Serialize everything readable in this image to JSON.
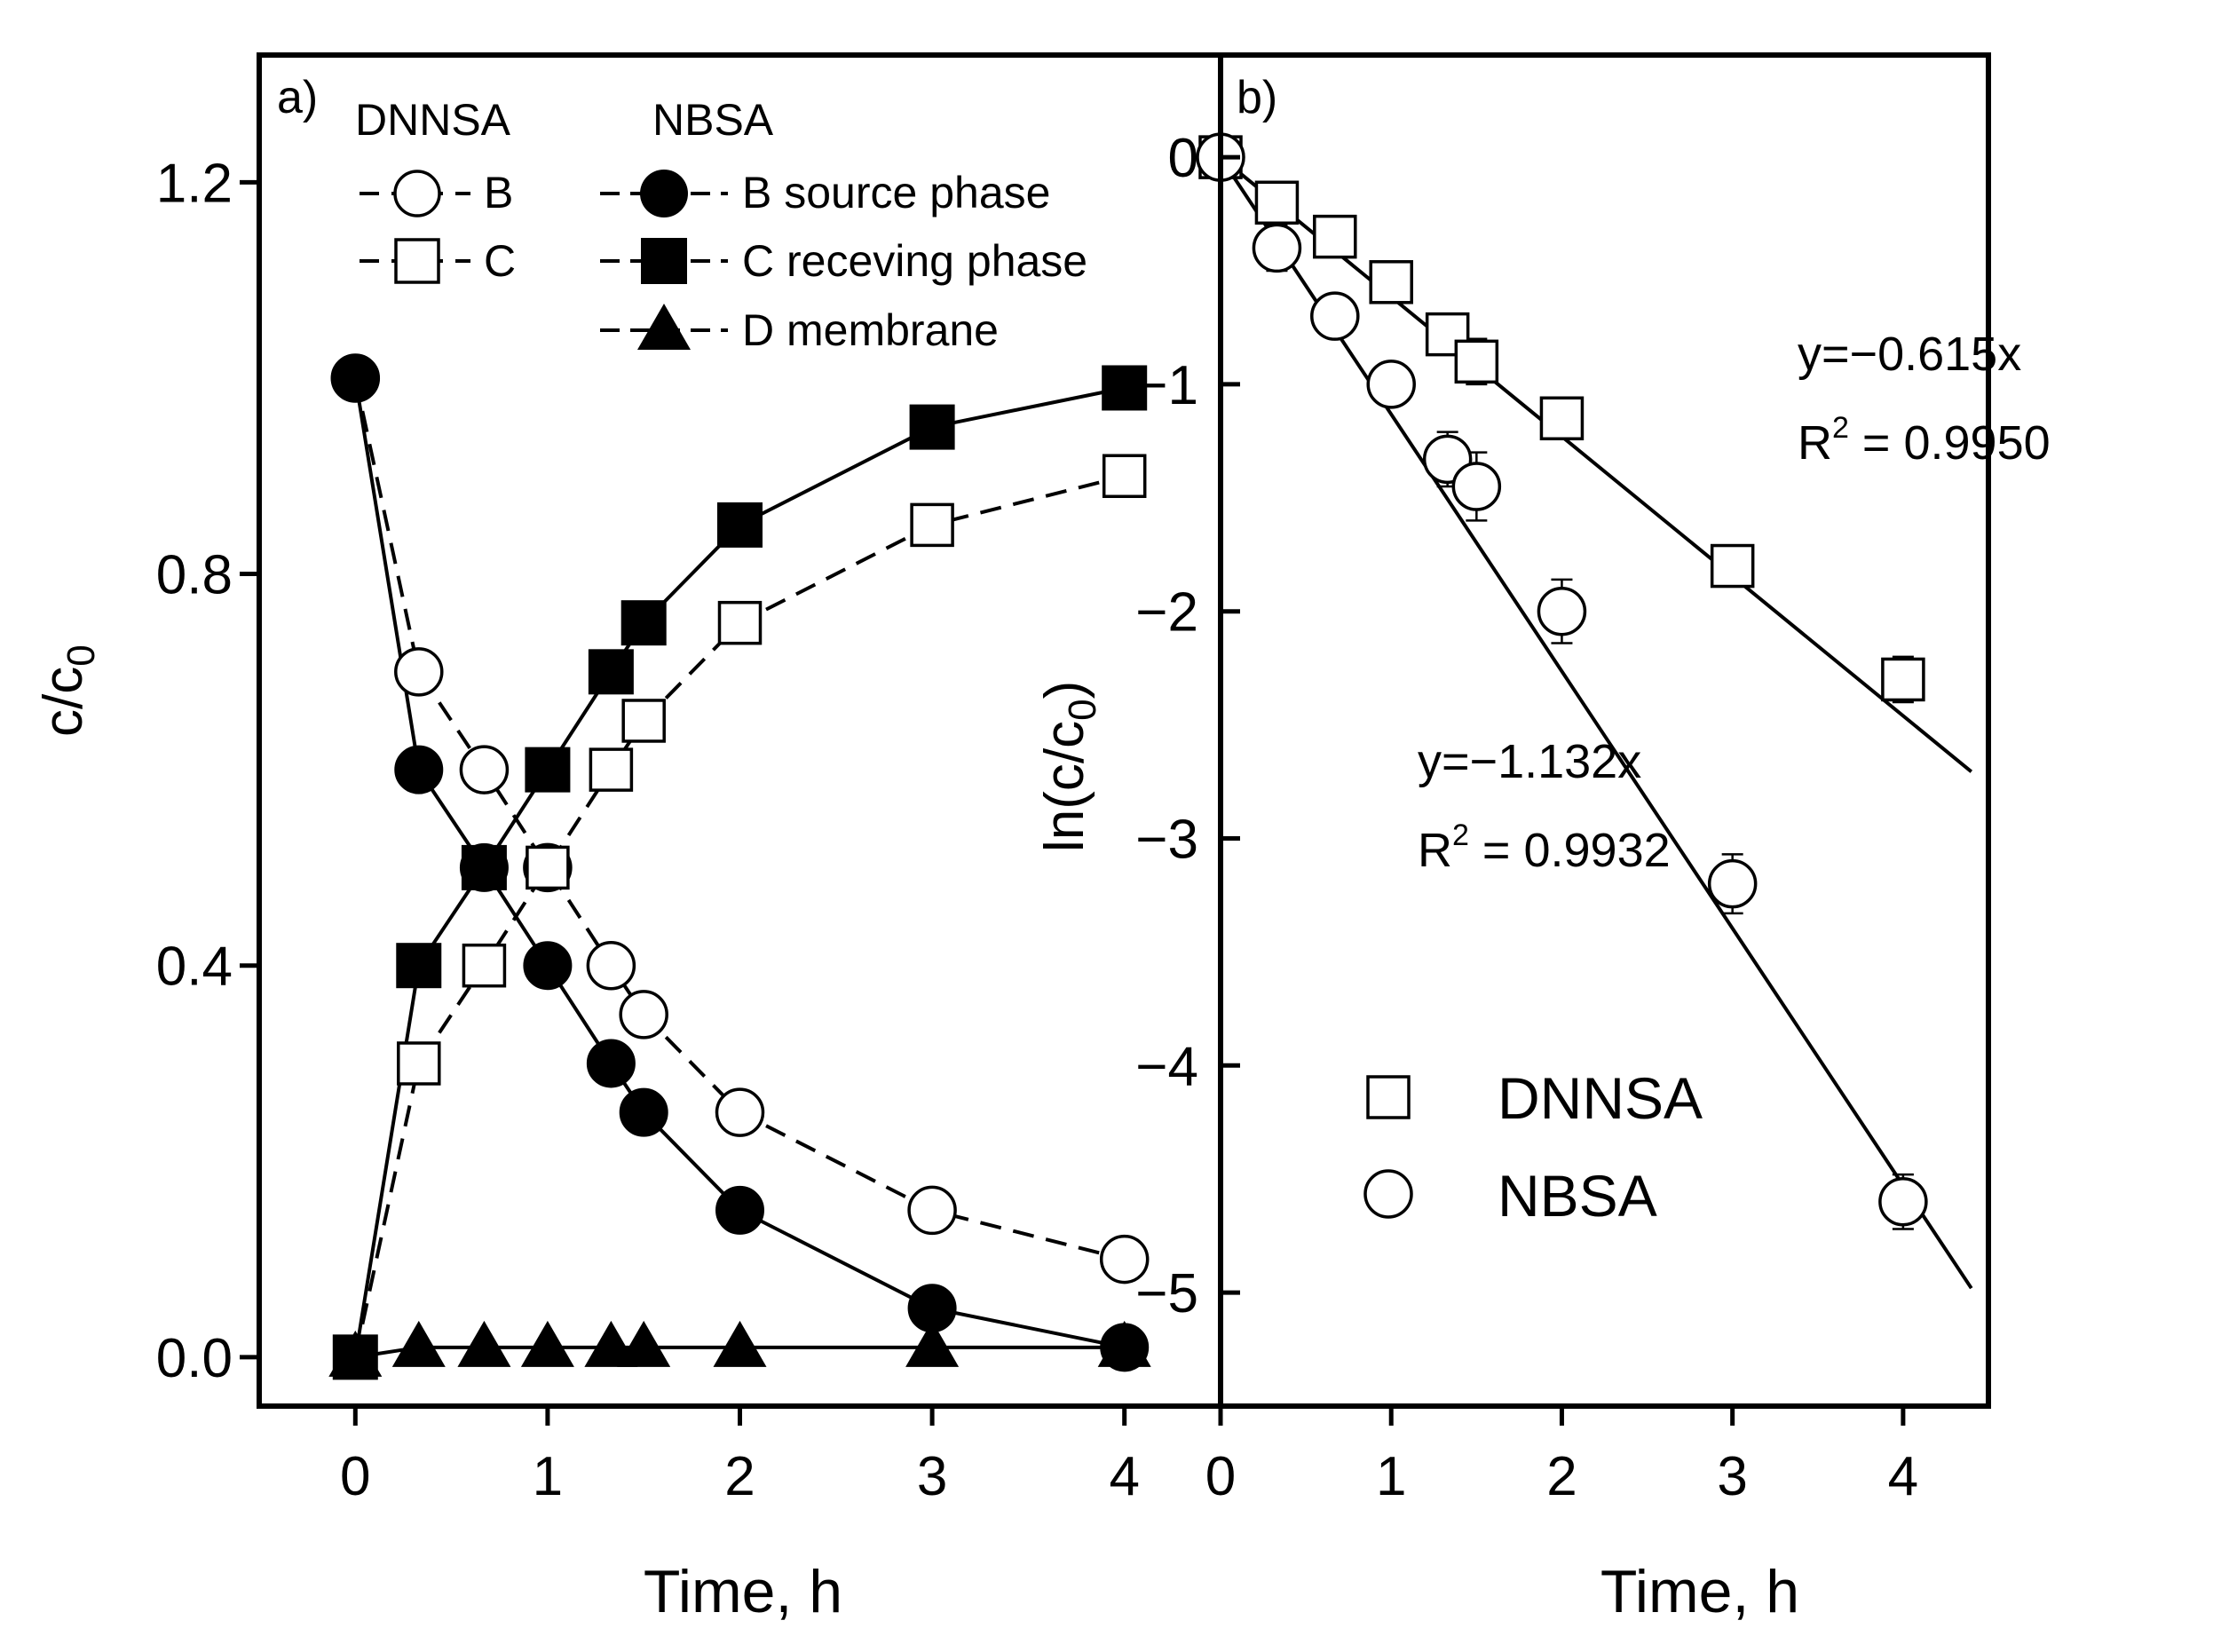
{
  "chart_data": [
    {
      "id": "a",
      "panel_label": "a)",
      "type": "line",
      "xlabel": "Time, h",
      "ylabel": {
        "base": "c/c",
        "sub": "0"
      },
      "xlim": [
        -0.5,
        4.5
      ],
      "ylim": [
        -0.05,
        1.33
      ],
      "xticks": [
        "0",
        "1",
        "2",
        "3",
        "4"
      ],
      "xtick_values": [
        0,
        1,
        2,
        3,
        4
      ],
      "yticks": [
        "0.0",
        "0.4",
        "0.8",
        "1.2"
      ],
      "ytick_values": [
        0,
        0.4,
        0.8,
        1.2
      ],
      "legend": {
        "col1_header": "DNNSA",
        "col2_header": "NBSA",
        "entries": [
          {
            "dnnsa_symbol": "B",
            "nbsa_label": "B source phase"
          },
          {
            "dnnsa_symbol": "C",
            "nbsa_label": "C receving phase"
          },
          {
            "dnnsa_symbol": "",
            "nbsa_label": "D membrane"
          }
        ]
      },
      "series": [
        {
          "name": "DNNSA B",
          "marker": "circle",
          "fill": "open",
          "line": "dashed",
          "x": [
            0,
            0.33,
            0.67,
            1,
            1.33,
            1.5,
            2,
            3,
            4
          ],
          "y": [
            1.0,
            0.7,
            0.6,
            0.5,
            0.4,
            0.35,
            0.25,
            0.15,
            0.1
          ]
        },
        {
          "name": "DNNSA C",
          "marker": "square",
          "fill": "open",
          "line": "dashed",
          "x": [
            0,
            0.33,
            0.67,
            1,
            1.33,
            1.5,
            2,
            3,
            4
          ],
          "y": [
            0,
            0.3,
            0.4,
            0.5,
            0.6,
            0.65,
            0.75,
            0.85,
            0.9
          ]
        },
        {
          "name": "NBSA B source phase",
          "marker": "circle",
          "fill": "filled",
          "line": "solid",
          "x": [
            0,
            0.33,
            0.67,
            1,
            1.33,
            1.5,
            2,
            3,
            4
          ],
          "y": [
            1.0,
            0.6,
            0.5,
            0.4,
            0.3,
            0.25,
            0.15,
            0.05,
            0.01
          ]
        },
        {
          "name": "NBSA C receving phase",
          "marker": "square",
          "fill": "filled",
          "line": "solid",
          "x": [
            0,
            0.33,
            0.67,
            1,
            1.33,
            1.5,
            2,
            3,
            4
          ],
          "y": [
            0,
            0.4,
            0.5,
            0.6,
            0.7,
            0.75,
            0.85,
            0.95,
            0.99
          ]
        },
        {
          "name": "NBSA D membrane",
          "marker": "triangle",
          "fill": "filled",
          "line": "solid",
          "x": [
            0,
            0.33,
            0.67,
            1,
            1.33,
            1.5,
            2,
            3,
            4
          ],
          "y": [
            0,
            0.01,
            0.01,
            0.01,
            0.01,
            0.01,
            0.01,
            0.01,
            0.01
          ]
        }
      ]
    },
    {
      "id": "b",
      "panel_label": "b)",
      "type": "scatter",
      "xlabel": "Time, h",
      "ylabel": {
        "pre": "ln(c/c",
        "sub": "0",
        "post": ")"
      },
      "xlim": [
        0,
        4.5
      ],
      "ylim": [
        -5.5,
        0.45
      ],
      "xticks": [
        "0",
        "1",
        "2",
        "3",
        "4"
      ],
      "xtick_values": [
        0,
        1,
        2,
        3,
        4
      ],
      "yticks": [
        "0",
        "−1",
        "−2",
        "−3",
        "−4",
        "−5"
      ],
      "ytick_values": [
        0,
        -1,
        -2,
        -3,
        -4,
        -5
      ],
      "legend": [
        {
          "marker": "square",
          "label": "DNNSA"
        },
        {
          "marker": "circle",
          "label": "NBSA"
        }
      ],
      "series": [
        {
          "name": "DNNSA",
          "marker": "square",
          "fill": "open",
          "x": [
            0,
            0.33,
            0.67,
            1,
            1.33,
            1.5,
            2,
            3,
            4
          ],
          "y": [
            0,
            -0.2,
            -0.35,
            -0.55,
            -0.78,
            -0.9,
            -1.15,
            -1.8,
            -2.3
          ],
          "error": [
            0.06,
            0.06,
            0.08,
            0.07,
            0.08,
            0.1,
            0.09,
            0.09,
            0.1
          ]
        },
        {
          "name": "NBSA",
          "marker": "circle",
          "fill": "open",
          "x": [
            0,
            0.33,
            0.67,
            1,
            1.33,
            1.5,
            2,
            3,
            4
          ],
          "y": [
            0,
            -0.4,
            -0.7,
            -1.0,
            -1.33,
            -1.45,
            -2.0,
            -3.2,
            -4.6
          ],
          "error": [
            0.06,
            0.1,
            0.08,
            0.08,
            0.12,
            0.15,
            0.14,
            0.13,
            0.12
          ]
        }
      ],
      "fits": [
        {
          "series": "DNNSA",
          "slope": -0.615,
          "x_range": [
            0,
            4.4
          ],
          "equation": "y=−0.615x",
          "r2_prefix": "R",
          "r2_sup": "2",
          "r2_value": " = 0.9950"
        },
        {
          "series": "NBSA",
          "slope": -1.132,
          "x_range": [
            0,
            4.4
          ],
          "equation": "y=−1.132x",
          "r2_prefix": "R",
          "r2_sup": "2",
          "r2_value": " = 0.9932"
        }
      ]
    }
  ]
}
